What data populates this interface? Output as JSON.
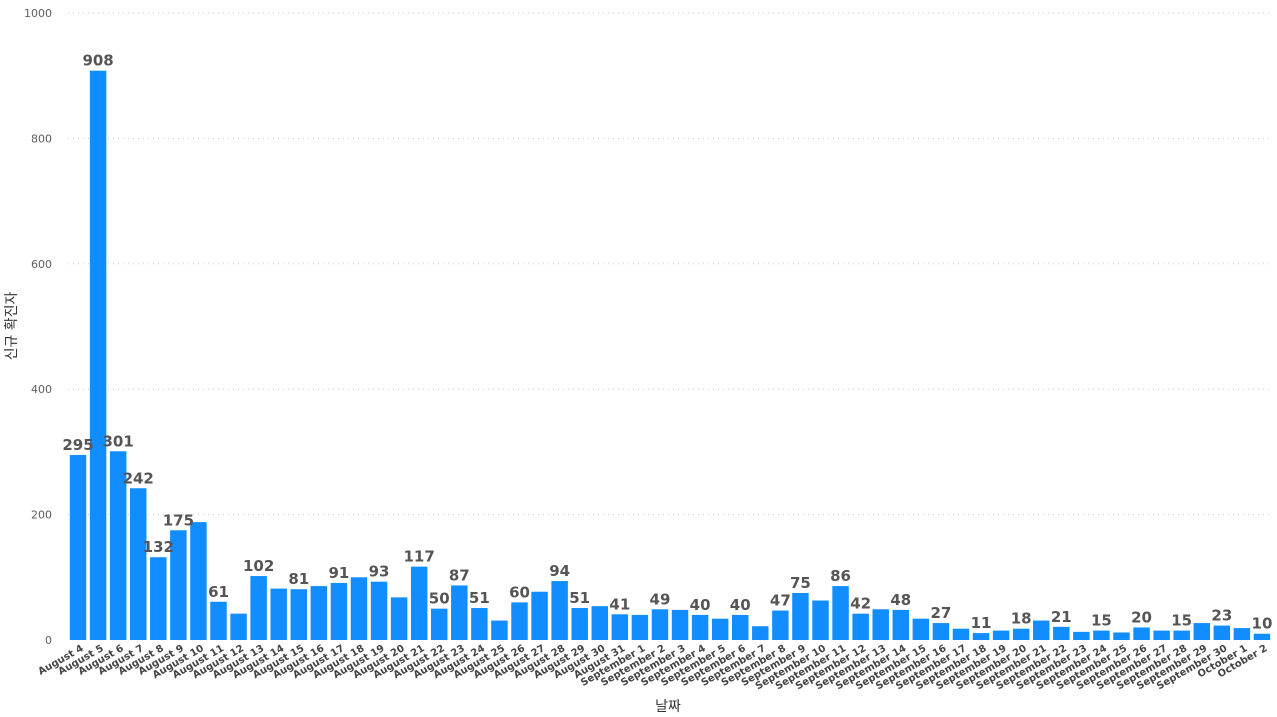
{
  "chart_data": {
    "type": "bar",
    "title": "",
    "xlabel": "날짜",
    "ylabel": "신규 확진자",
    "ylim": [
      0,
      1000
    ],
    "yticks": [
      0,
      200,
      400,
      600,
      800,
      1000
    ],
    "grid": true,
    "bar_color": "#118dff",
    "categories": [
      "August 4",
      "August 5",
      "August 6",
      "August 7",
      "August 8",
      "August 9",
      "August 10",
      "August 11",
      "August 12",
      "August 13",
      "August 14",
      "August 15",
      "August 16",
      "August 17",
      "August 18",
      "August 19",
      "August 20",
      "August 21",
      "August 22",
      "August 23",
      "August 24",
      "August 25",
      "August 26",
      "August 27",
      "August 28",
      "August 29",
      "August 30",
      "August 31",
      "September 1",
      "September 2",
      "September 3",
      "September 4",
      "September 5",
      "September 6",
      "September 7",
      "September 8",
      "September 9",
      "September 10",
      "September 11",
      "September 12",
      "September 13",
      "September 14",
      "September 15",
      "September 16",
      "September 17",
      "September 18",
      "September 19",
      "September 20",
      "September 21",
      "September 22",
      "September 23",
      "September 24",
      "September 25",
      "September 26",
      "September 27",
      "September 28",
      "September 29",
      "September 30",
      "October 1",
      "October 2"
    ],
    "values": [
      295,
      908,
      301,
      242,
      132,
      175,
      188,
      61,
      42,
      102,
      82,
      81,
      86,
      91,
      100,
      93,
      68,
      117,
      50,
      87,
      51,
      31,
      60,
      77,
      94,
      51,
      54,
      41,
      40,
      49,
      48,
      40,
      34,
      40,
      22,
      47,
      75,
      63,
      86,
      42,
      49,
      48,
      34,
      27,
      18,
      11,
      15,
      18,
      31,
      21,
      13,
      15,
      12,
      20,
      15,
      15,
      27,
      23,
      19,
      10
    ],
    "labeled_indices": [
      0,
      1,
      2,
      3,
      4,
      5,
      7,
      9,
      11,
      13,
      15,
      17,
      18,
      19,
      20,
      22,
      24,
      25,
      27,
      29,
      31,
      33,
      35,
      36,
      38,
      39,
      41,
      43,
      45,
      47,
      49,
      51,
      53,
      55,
      57,
      59
    ]
  }
}
